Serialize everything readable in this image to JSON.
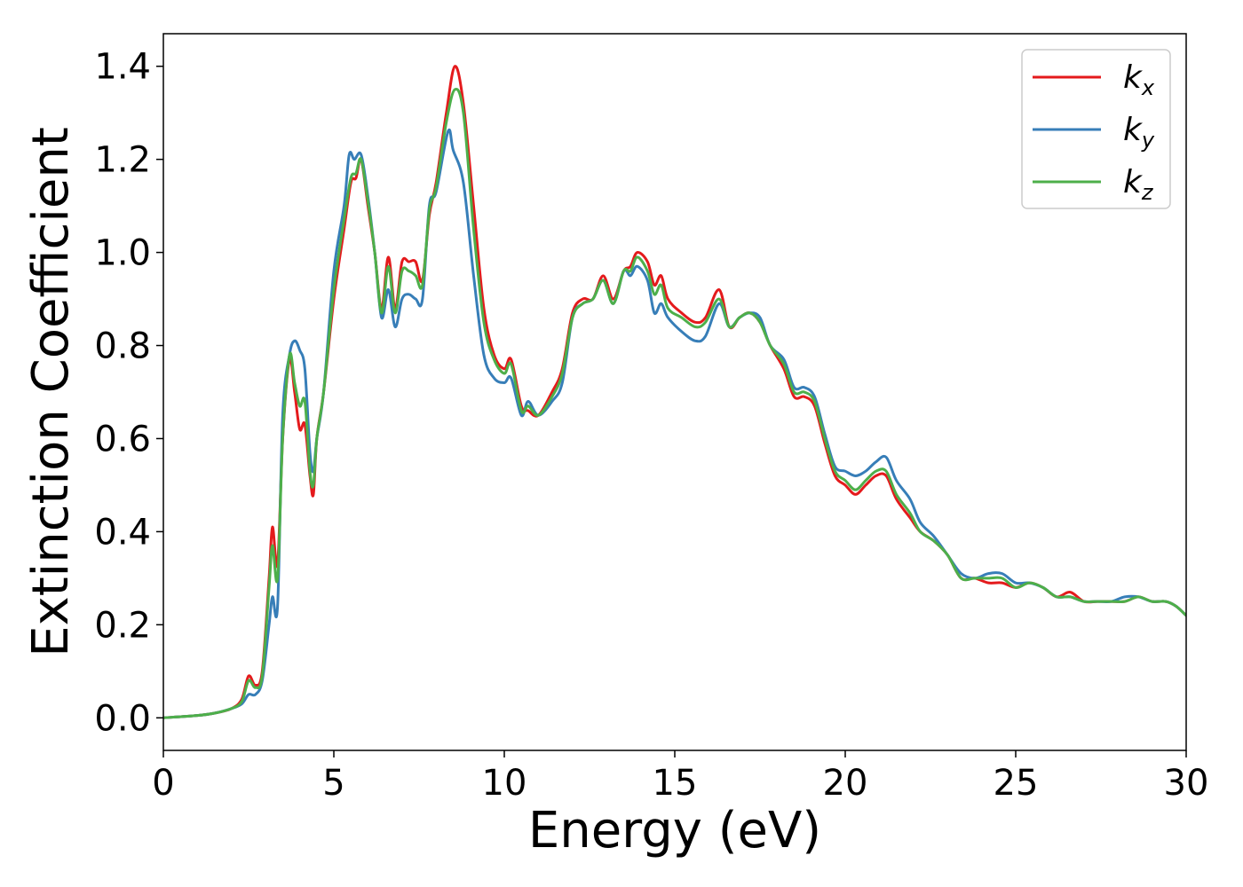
{
  "chart_data": {
    "type": "line",
    "title": "",
    "xlabel": "Energy (eV)",
    "ylabel": "Extinction Coefficient",
    "xlim": [
      0,
      30
    ],
    "ylim": [
      -0.07,
      1.47
    ],
    "xticks": [
      0,
      5,
      10,
      15,
      20,
      25,
      30
    ],
    "xtick_labels": [
      "0",
      "5",
      "10",
      "15",
      "20",
      "25",
      "30"
    ],
    "yticks": [
      0.0,
      0.2,
      0.4,
      0.6,
      0.8,
      1.0,
      1.2,
      1.4
    ],
    "ytick_labels": [
      "0.0",
      "0.2",
      "0.4",
      "0.6",
      "0.8",
      "1.0",
      "1.2",
      "1.4"
    ],
    "grid": false,
    "legend_position": "top-right",
    "series": [
      {
        "name": "k_x",
        "legend_base": "k",
        "legend_sub": "x",
        "color": "#e41a1c",
        "points": [
          [
            0,
            0
          ],
          [
            1,
            0.005
          ],
          [
            1.5,
            0.01
          ],
          [
            2.0,
            0.02
          ],
          [
            2.3,
            0.04
          ],
          [
            2.5,
            0.09
          ],
          [
            2.7,
            0.07
          ],
          [
            2.9,
            0.1
          ],
          [
            3.1,
            0.3
          ],
          [
            3.2,
            0.41
          ],
          [
            3.35,
            0.33
          ],
          [
            3.5,
            0.6
          ],
          [
            3.7,
            0.77
          ],
          [
            3.85,
            0.7
          ],
          [
            4.0,
            0.62
          ],
          [
            4.15,
            0.63
          ],
          [
            4.3,
            0.52
          ],
          [
            4.4,
            0.48
          ],
          [
            4.5,
            0.6
          ],
          [
            4.7,
            0.7
          ],
          [
            5.0,
            0.9
          ],
          [
            5.3,
            1.05
          ],
          [
            5.5,
            1.15
          ],
          [
            5.65,
            1.16
          ],
          [
            5.8,
            1.2
          ],
          [
            6.0,
            1.1
          ],
          [
            6.2,
            1.0
          ],
          [
            6.4,
            0.88
          ],
          [
            6.6,
            0.99
          ],
          [
            6.8,
            0.88
          ],
          [
            7.0,
            0.98
          ],
          [
            7.2,
            0.98
          ],
          [
            7.4,
            0.98
          ],
          [
            7.6,
            0.94
          ],
          [
            7.8,
            1.08
          ],
          [
            8.0,
            1.15
          ],
          [
            8.3,
            1.3
          ],
          [
            8.55,
            1.4
          ],
          [
            8.8,
            1.32
          ],
          [
            9.1,
            1.1
          ],
          [
            9.4,
            0.88
          ],
          [
            9.7,
            0.78
          ],
          [
            10.0,
            0.75
          ],
          [
            10.2,
            0.77
          ],
          [
            10.5,
            0.67
          ],
          [
            10.7,
            0.66
          ],
          [
            11.0,
            0.65
          ],
          [
            11.4,
            0.7
          ],
          [
            11.7,
            0.75
          ],
          [
            12.0,
            0.87
          ],
          [
            12.3,
            0.9
          ],
          [
            12.6,
            0.9
          ],
          [
            12.9,
            0.95
          ],
          [
            13.2,
            0.9
          ],
          [
            13.5,
            0.96
          ],
          [
            13.7,
            0.97
          ],
          [
            13.9,
            1.0
          ],
          [
            14.2,
            0.98
          ],
          [
            14.4,
            0.93
          ],
          [
            14.6,
            0.95
          ],
          [
            14.8,
            0.9
          ],
          [
            15.2,
            0.87
          ],
          [
            15.6,
            0.85
          ],
          [
            15.9,
            0.86
          ],
          [
            16.3,
            0.92
          ],
          [
            16.6,
            0.84
          ],
          [
            16.9,
            0.86
          ],
          [
            17.2,
            0.87
          ],
          [
            17.5,
            0.85
          ],
          [
            17.8,
            0.8
          ],
          [
            18.2,
            0.75
          ],
          [
            18.5,
            0.69
          ],
          [
            18.8,
            0.69
          ],
          [
            19.1,
            0.67
          ],
          [
            19.4,
            0.59
          ],
          [
            19.7,
            0.52
          ],
          [
            20.0,
            0.5
          ],
          [
            20.3,
            0.48
          ],
          [
            20.6,
            0.5
          ],
          [
            20.9,
            0.52
          ],
          [
            21.2,
            0.52
          ],
          [
            21.5,
            0.47
          ],
          [
            21.9,
            0.43
          ],
          [
            22.2,
            0.4
          ],
          [
            22.6,
            0.38
          ],
          [
            23.0,
            0.35
          ],
          [
            23.4,
            0.3
          ],
          [
            23.8,
            0.3
          ],
          [
            24.2,
            0.29
          ],
          [
            24.6,
            0.29
          ],
          [
            25.0,
            0.28
          ],
          [
            25.4,
            0.29
          ],
          [
            25.8,
            0.28
          ],
          [
            26.2,
            0.26
          ],
          [
            26.6,
            0.27
          ],
          [
            27.0,
            0.25
          ],
          [
            27.4,
            0.25
          ],
          [
            27.8,
            0.25
          ],
          [
            28.2,
            0.25
          ],
          [
            28.6,
            0.26
          ],
          [
            29.0,
            0.25
          ],
          [
            29.4,
            0.25
          ],
          [
            29.7,
            0.24
          ],
          [
            30.0,
            0.22
          ]
        ]
      },
      {
        "name": "k_y",
        "legend_base": "k",
        "legend_sub": "y",
        "color": "#377eb8",
        "points": [
          [
            0,
            0
          ],
          [
            1,
            0.005
          ],
          [
            1.5,
            0.01
          ],
          [
            2.0,
            0.02
          ],
          [
            2.3,
            0.03
          ],
          [
            2.5,
            0.05
          ],
          [
            2.7,
            0.05
          ],
          [
            2.9,
            0.08
          ],
          [
            3.1,
            0.2
          ],
          [
            3.2,
            0.26
          ],
          [
            3.35,
            0.24
          ],
          [
            3.5,
            0.65
          ],
          [
            3.7,
            0.78
          ],
          [
            3.85,
            0.81
          ],
          [
            4.0,
            0.79
          ],
          [
            4.15,
            0.75
          ],
          [
            4.3,
            0.57
          ],
          [
            4.4,
            0.53
          ],
          [
            4.5,
            0.6
          ],
          [
            4.7,
            0.7
          ],
          [
            5.0,
            0.96
          ],
          [
            5.3,
            1.1
          ],
          [
            5.45,
            1.21
          ],
          [
            5.6,
            1.2
          ],
          [
            5.8,
            1.21
          ],
          [
            6.0,
            1.12
          ],
          [
            6.2,
            1.0
          ],
          [
            6.4,
            0.86
          ],
          [
            6.6,
            0.92
          ],
          [
            6.8,
            0.84
          ],
          [
            7.0,
            0.9
          ],
          [
            7.2,
            0.91
          ],
          [
            7.4,
            0.9
          ],
          [
            7.6,
            0.9
          ],
          [
            7.8,
            1.1
          ],
          [
            8.0,
            1.13
          ],
          [
            8.35,
            1.26
          ],
          [
            8.5,
            1.22
          ],
          [
            8.8,
            1.15
          ],
          [
            9.1,
            0.95
          ],
          [
            9.4,
            0.78
          ],
          [
            9.7,
            0.73
          ],
          [
            10.0,
            0.72
          ],
          [
            10.2,
            0.73
          ],
          [
            10.5,
            0.65
          ],
          [
            10.7,
            0.68
          ],
          [
            11.0,
            0.65
          ],
          [
            11.4,
            0.68
          ],
          [
            11.7,
            0.72
          ],
          [
            12.0,
            0.86
          ],
          [
            12.3,
            0.89
          ],
          [
            12.6,
            0.9
          ],
          [
            12.9,
            0.94
          ],
          [
            13.2,
            0.89
          ],
          [
            13.5,
            0.96
          ],
          [
            13.7,
            0.95
          ],
          [
            13.9,
            0.97
          ],
          [
            14.2,
            0.94
          ],
          [
            14.4,
            0.87
          ],
          [
            14.6,
            0.89
          ],
          [
            14.8,
            0.86
          ],
          [
            15.2,
            0.83
          ],
          [
            15.6,
            0.81
          ],
          [
            15.9,
            0.82
          ],
          [
            16.3,
            0.89
          ],
          [
            16.6,
            0.84
          ],
          [
            16.9,
            0.86
          ],
          [
            17.2,
            0.87
          ],
          [
            17.5,
            0.86
          ],
          [
            17.8,
            0.8
          ],
          [
            18.2,
            0.77
          ],
          [
            18.5,
            0.71
          ],
          [
            18.8,
            0.71
          ],
          [
            19.1,
            0.69
          ],
          [
            19.4,
            0.61
          ],
          [
            19.7,
            0.54
          ],
          [
            20.0,
            0.53
          ],
          [
            20.3,
            0.52
          ],
          [
            20.6,
            0.53
          ],
          [
            20.9,
            0.55
          ],
          [
            21.2,
            0.56
          ],
          [
            21.5,
            0.51
          ],
          [
            21.9,
            0.47
          ],
          [
            22.2,
            0.42
          ],
          [
            22.6,
            0.39
          ],
          [
            23.0,
            0.35
          ],
          [
            23.4,
            0.31
          ],
          [
            23.8,
            0.3
          ],
          [
            24.2,
            0.31
          ],
          [
            24.6,
            0.31
          ],
          [
            25.0,
            0.29
          ],
          [
            25.4,
            0.29
          ],
          [
            25.8,
            0.28
          ],
          [
            26.2,
            0.26
          ],
          [
            26.6,
            0.26
          ],
          [
            27.0,
            0.25
          ],
          [
            27.4,
            0.25
          ],
          [
            27.8,
            0.25
          ],
          [
            28.2,
            0.26
          ],
          [
            28.6,
            0.26
          ],
          [
            29.0,
            0.25
          ],
          [
            29.4,
            0.25
          ],
          [
            29.7,
            0.24
          ],
          [
            30.0,
            0.22
          ]
        ]
      },
      {
        "name": "k_z",
        "legend_base": "k",
        "legend_sub": "z",
        "color": "#4daf4a",
        "points": [
          [
            0,
            0
          ],
          [
            1,
            0.005
          ],
          [
            1.5,
            0.01
          ],
          [
            2.0,
            0.02
          ],
          [
            2.3,
            0.035
          ],
          [
            2.5,
            0.08
          ],
          [
            2.7,
            0.065
          ],
          [
            2.9,
            0.09
          ],
          [
            3.1,
            0.28
          ],
          [
            3.2,
            0.37
          ],
          [
            3.35,
            0.3
          ],
          [
            3.5,
            0.6
          ],
          [
            3.7,
            0.78
          ],
          [
            3.85,
            0.72
          ],
          [
            4.0,
            0.67
          ],
          [
            4.15,
            0.68
          ],
          [
            4.3,
            0.53
          ],
          [
            4.4,
            0.5
          ],
          [
            4.5,
            0.6
          ],
          [
            4.7,
            0.7
          ],
          [
            5.0,
            0.92
          ],
          [
            5.3,
            1.07
          ],
          [
            5.5,
            1.16
          ],
          [
            5.65,
            1.17
          ],
          [
            5.8,
            1.2
          ],
          [
            6.0,
            1.11
          ],
          [
            6.2,
            1.0
          ],
          [
            6.4,
            0.87
          ],
          [
            6.6,
            0.97
          ],
          [
            6.8,
            0.87
          ],
          [
            7.0,
            0.96
          ],
          [
            7.2,
            0.96
          ],
          [
            7.4,
            0.95
          ],
          [
            7.6,
            0.93
          ],
          [
            7.8,
            1.09
          ],
          [
            8.0,
            1.14
          ],
          [
            8.3,
            1.28
          ],
          [
            8.55,
            1.35
          ],
          [
            8.8,
            1.3
          ],
          [
            9.1,
            1.05
          ],
          [
            9.4,
            0.85
          ],
          [
            9.7,
            0.77
          ],
          [
            10.0,
            0.74
          ],
          [
            10.2,
            0.76
          ],
          [
            10.5,
            0.66
          ],
          [
            10.7,
            0.67
          ],
          [
            11.0,
            0.65
          ],
          [
            11.4,
            0.69
          ],
          [
            11.7,
            0.74
          ],
          [
            12.0,
            0.86
          ],
          [
            12.3,
            0.89
          ],
          [
            12.6,
            0.9
          ],
          [
            12.9,
            0.94
          ],
          [
            13.2,
            0.89
          ],
          [
            13.5,
            0.96
          ],
          [
            13.7,
            0.96
          ],
          [
            13.9,
            0.99
          ],
          [
            14.2,
            0.96
          ],
          [
            14.4,
            0.91
          ],
          [
            14.6,
            0.93
          ],
          [
            14.8,
            0.88
          ],
          [
            15.2,
            0.86
          ],
          [
            15.6,
            0.84
          ],
          [
            15.9,
            0.85
          ],
          [
            16.3,
            0.9
          ],
          [
            16.6,
            0.84
          ],
          [
            16.9,
            0.86
          ],
          [
            17.2,
            0.87
          ],
          [
            17.5,
            0.85
          ],
          [
            17.8,
            0.8
          ],
          [
            18.2,
            0.76
          ],
          [
            18.5,
            0.7
          ],
          [
            18.8,
            0.7
          ],
          [
            19.1,
            0.68
          ],
          [
            19.4,
            0.6
          ],
          [
            19.7,
            0.53
          ],
          [
            20.0,
            0.51
          ],
          [
            20.3,
            0.49
          ],
          [
            20.6,
            0.51
          ],
          [
            20.9,
            0.53
          ],
          [
            21.2,
            0.53
          ],
          [
            21.5,
            0.48
          ],
          [
            21.9,
            0.44
          ],
          [
            22.2,
            0.4
          ],
          [
            22.6,
            0.38
          ],
          [
            23.0,
            0.35
          ],
          [
            23.4,
            0.3
          ],
          [
            23.8,
            0.3
          ],
          [
            24.2,
            0.3
          ],
          [
            24.6,
            0.3
          ],
          [
            25.0,
            0.28
          ],
          [
            25.4,
            0.29
          ],
          [
            25.8,
            0.28
          ],
          [
            26.2,
            0.26
          ],
          [
            26.6,
            0.26
          ],
          [
            27.0,
            0.25
          ],
          [
            27.4,
            0.25
          ],
          [
            27.8,
            0.25
          ],
          [
            28.2,
            0.25
          ],
          [
            28.6,
            0.26
          ],
          [
            29.0,
            0.25
          ],
          [
            29.4,
            0.25
          ],
          [
            29.7,
            0.24
          ],
          [
            30.0,
            0.22
          ]
        ]
      }
    ]
  }
}
